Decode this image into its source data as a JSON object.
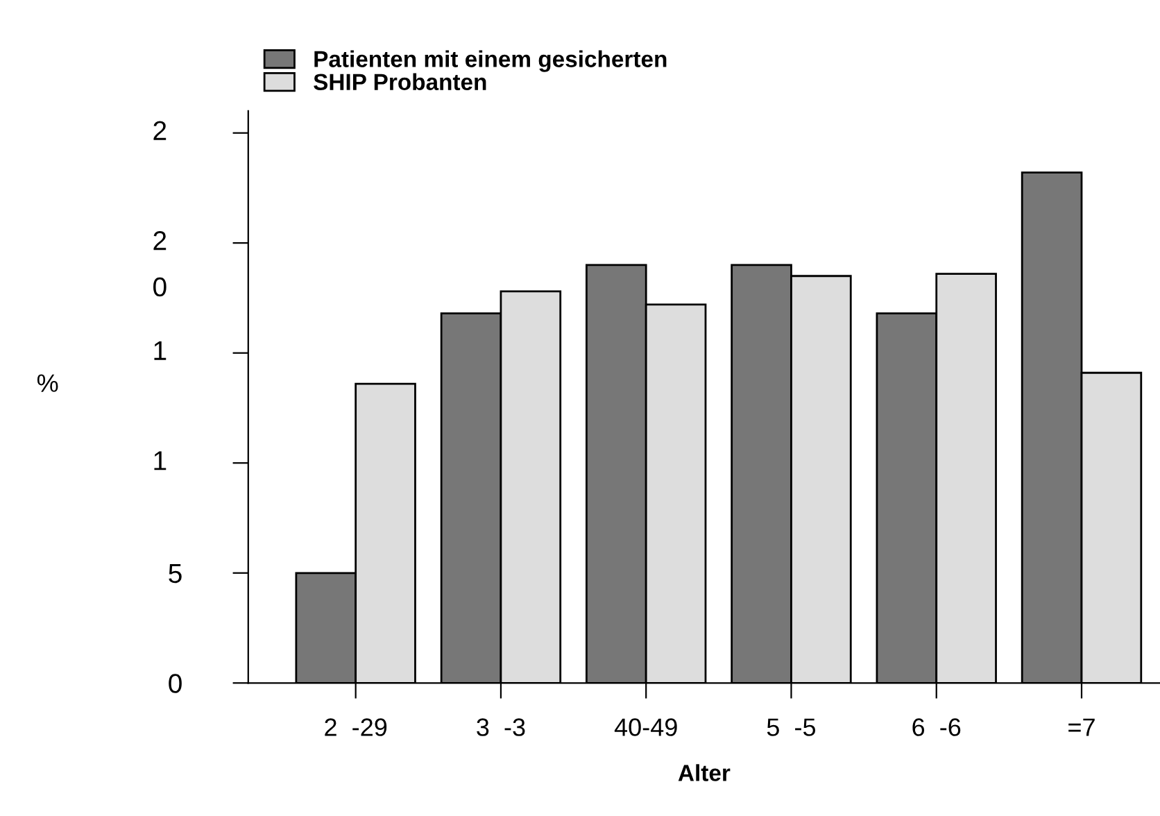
{
  "chart_data": {
    "type": "bar",
    "xlabel": "Alter",
    "ylabel": "%",
    "categories": [
      "2  -29",
      "3  -3",
      "40-49",
      "5  -5",
      "6  -6",
      "=7"
    ],
    "series": [
      {
        "name": "Patienten mit einem gesicherten",
        "color": "#777777",
        "values": [
          5.0,
          16.8,
          19.0,
          19.0,
          16.8,
          23.2
        ]
      },
      {
        "name": "SHIP Probanten",
        "color": "#dddddd",
        "values": [
          13.6,
          17.8,
          17.2,
          18.5,
          18.6,
          14.1
        ]
      }
    ],
    "ylim": [
      0,
      26
    ],
    "yticks": [
      0,
      5,
      {
        "value": 10,
        "label": null
      },
      {
        "value": 15,
        "label": null
      },
      {
        "value": 20,
        "label": null
      },
      {
        "value": 25,
        "label": null
      }
    ],
    "annotations": [
      "1",
      "1",
      "2",
      "2",
      "0"
    ],
    "legend": "top left",
    "grid": false
  }
}
